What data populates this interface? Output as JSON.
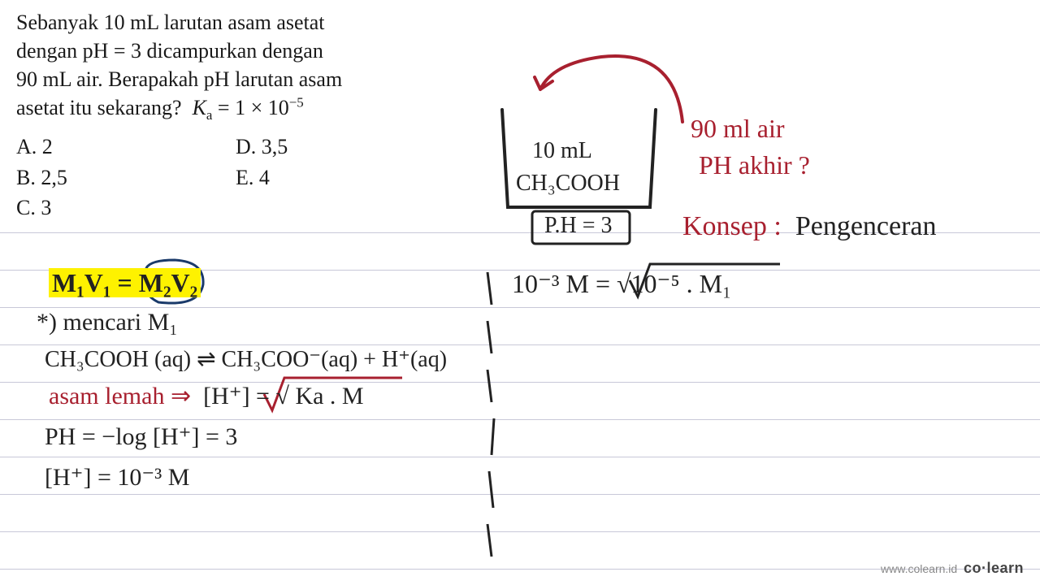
{
  "question": {
    "text_lines": [
      "Sebanyak 10 mL larutan asam asetat",
      "dengan pH = 3 dicampurkan dengan",
      "90 mL air. Berapakah pH larutan asam",
      "asetat itu sekarang?"
    ],
    "ka_label": "K",
    "ka_sub": "a",
    "ka_eq": " = 1 × 10",
    "ka_exp": "−5"
  },
  "options": {
    "a": "A.   2",
    "b": "B.   2,5",
    "c": "C.   3",
    "d": "D.   3,5",
    "e": "E.   4"
  },
  "beaker": {
    "line1": "10 mL",
    "line2": "CH₃COOH",
    "line3": "P.H = 3"
  },
  "notes_right": {
    "water": "90 ml air",
    "ph_q": "PH akhir ?",
    "konsep_label": "Konsep :",
    "konsep_value": "Pengenceran",
    "eq": "10⁻³ M = √10⁻⁵ . M₁"
  },
  "notes_left": {
    "formula": "M₁V₁ = M₂V₂",
    "step1": "*) mencari  M₁",
    "step2": "CH₃COOH (aq) ⇌ CH₃COO⁻(aq) + H⁺(aq)",
    "step3a": "asam lemah ⇒",
    "step3b": "[H⁺] = √ Ka . M",
    "step4": "PH = −log [H⁺] = 3",
    "step5": "[H⁺] = 10⁻³ M"
  },
  "watermark": {
    "url": "www.colearn.id",
    "brand": "co·learn"
  },
  "colors": {
    "ink": "#222222",
    "highlight": "#fef200",
    "red": "#a8202f",
    "green": "#1a7a3a",
    "rule": "#c8c8d8"
  },
  "notebook": {
    "line_start": 286,
    "line_gap": 46,
    "line_count": 10
  }
}
